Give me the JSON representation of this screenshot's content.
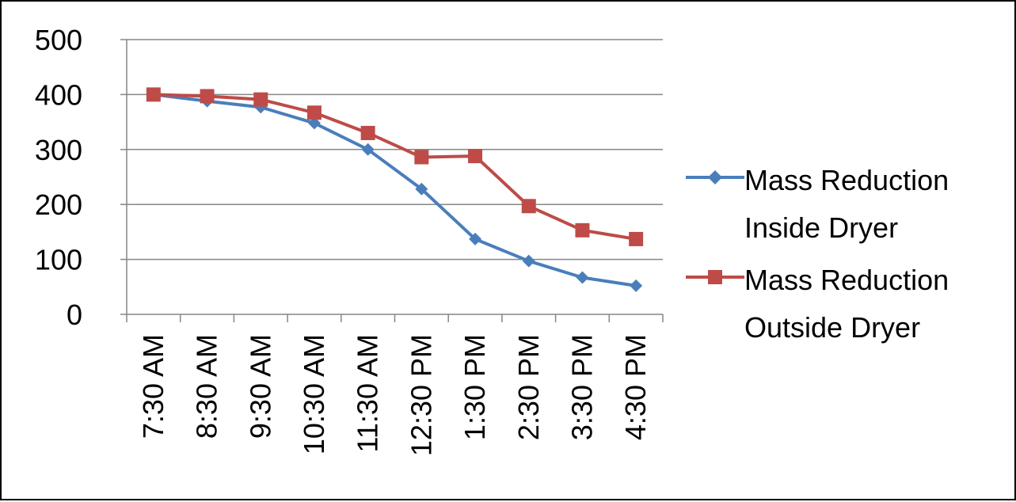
{
  "chart_data": {
    "type": "line",
    "title": "",
    "xlabel": "",
    "ylabel": "",
    "categories": [
      "7:30 AM",
      "8:30 AM",
      "9:30 AM",
      "10:30 AM",
      "11:30 AM",
      "12:30 PM",
      "1:30 PM",
      "2:30 PM",
      "3:30 PM",
      "4:30 PM"
    ],
    "ylim": [
      0,
      500
    ],
    "yticks": [
      "0",
      "100",
      "200",
      "300",
      "400",
      "500"
    ],
    "grid": "horizontal",
    "legend_position": "right",
    "series": [
      {
        "name": "Mass Reduction Inside Dryer",
        "label_line1": "Mass Reduction",
        "label_line2": "Inside Dryer",
        "color": "#4A7EBB",
        "marker": "diamond",
        "values": [
          400,
          388,
          377,
          348,
          300,
          228,
          137,
          97,
          67,
          52
        ]
      },
      {
        "name": "Mass Reduction Outside Dryer",
        "label_line1": "Mass Reduction",
        "label_line2": "Outside Dryer",
        "color": "#BE4B48",
        "marker": "square",
        "values": [
          400,
          397,
          391,
          367,
          330,
          286,
          288,
          197,
          153,
          137
        ]
      }
    ]
  }
}
